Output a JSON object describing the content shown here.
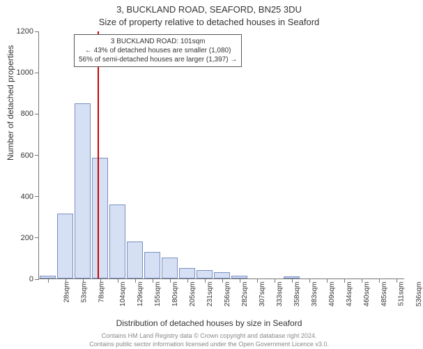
{
  "title": "3, BUCKLAND ROAD, SEAFORD, BN25 3DU",
  "subtitle": "Size of property relative to detached houses in Seaford",
  "ylabel": "Number of detached properties",
  "xlabel": "Distribution of detached houses by size in Seaford",
  "credit_line1": "Contains HM Land Registry data © Crown copyright and database right 2024.",
  "credit_line2": "Contains public sector information licensed under the Open Government Licence v3.0.",
  "chart": {
    "type": "histogram",
    "background_color": "#ffffff",
    "axis_color": "#777777",
    "bar_fill": "#d6e0f5",
    "bar_stroke": "#7a8fbf",
    "marker_color": "#cc0000",
    "ylim": [
      0,
      1200
    ],
    "ytick_step": 200,
    "yticks": [
      0,
      200,
      400,
      600,
      800,
      1000,
      1200
    ],
    "x_categories": [
      "28sqm",
      "53sqm",
      "78sqm",
      "104sqm",
      "129sqm",
      "155sqm",
      "180sqm",
      "205sqm",
      "231sqm",
      "256sqm",
      "282sqm",
      "307sqm",
      "333sqm",
      "358sqm",
      "383sqm",
      "409sqm",
      "434sqm",
      "460sqm",
      "485sqm",
      "511sqm",
      "536sqm"
    ],
    "values": [
      15,
      315,
      850,
      585,
      360,
      180,
      130,
      100,
      50,
      40,
      30,
      15,
      0,
      0,
      10,
      0,
      0,
      0,
      0,
      0,
      0
    ],
    "bar_width_ratio": 0.95,
    "marker_x_index": 2.9,
    "marker_label": "101sqm",
    "tick_fontsize": 10,
    "label_fontsize": 12,
    "title_fontsize": 13
  },
  "annotation": {
    "line1": "3 BUCKLAND ROAD: 101sqm",
    "line2": "← 43% of detached houses are smaller (1,080)",
    "line3": "56% of semi-detached houses are larger (1,397) →",
    "border_color": "#555555",
    "background": "#ffffff",
    "fontsize": 10
  }
}
